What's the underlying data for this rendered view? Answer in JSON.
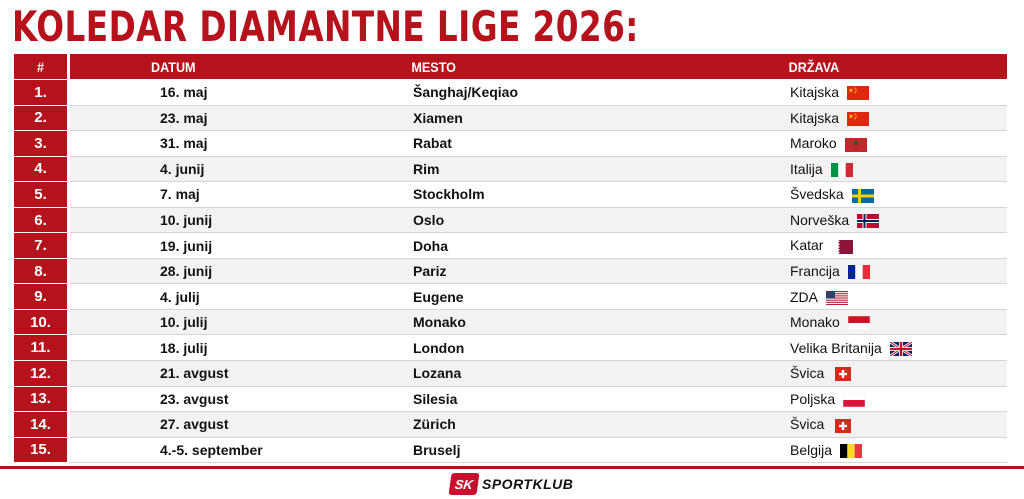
{
  "title": "KOLEDAR DIAMANTNE LIGE 2026:",
  "headers": {
    "num": "#",
    "date": "DATUM",
    "place": "MESTO",
    "country": "DRŽAVA"
  },
  "rows": [
    {
      "num": "1.",
      "date": "16. maj",
      "place": "Šanghaj/Keqiao",
      "country": "Kitajska",
      "flag": "china-flag-icon"
    },
    {
      "num": "2.",
      "date": "23. maj",
      "place": "Xiamen",
      "country": "Kitajska",
      "flag": "china-flag-icon"
    },
    {
      "num": "3.",
      "date": "31. maj",
      "place": "Rabat",
      "country": "Maroko",
      "flag": "morocco-flag-icon"
    },
    {
      "num": "4.",
      "date": "4. junij",
      "place": "Rim",
      "country": "Italija",
      "flag": "italy-flag-icon"
    },
    {
      "num": "5.",
      "date": "7. maj",
      "place": "Stockholm",
      "country": "Švedska",
      "flag": "sweden-flag-icon"
    },
    {
      "num": "6.",
      "date": "10. junij",
      "place": "Oslo",
      "country": "Norveška",
      "flag": "norway-flag-icon"
    },
    {
      "num": "7.",
      "date": "19. junij",
      "place": "Doha",
      "country": "Katar",
      "flag": "qatar-flag-icon"
    },
    {
      "num": "8.",
      "date": "28. junij",
      "place": "Pariz",
      "country": "Francija",
      "flag": "france-flag-icon"
    },
    {
      "num": "9.",
      "date": "4. julij",
      "place": "Eugene",
      "country": "ZDA",
      "flag": "usa-flag-icon"
    },
    {
      "num": "10.",
      "date": "10. julij",
      "place": "Monako",
      "country": "Monako",
      "flag": "monaco-flag-icon"
    },
    {
      "num": "11.",
      "date": "18. julij",
      "place": "London",
      "country": "Velika Britanija",
      "flag": "uk-flag-icon"
    },
    {
      "num": "12.",
      "date": "21. avgust",
      "place": "Lozana",
      "country": "Švica",
      "flag": "switzerland-flag-icon"
    },
    {
      "num": "13.",
      "date": "23. avgust",
      "place": "Silesia",
      "country": "Poljska",
      "flag": "poland-flag-icon"
    },
    {
      "num": "14.",
      "date": "27. avgust",
      "place": "Zürich",
      "country": "Švica",
      "flag": "switzerland-flag-icon"
    },
    {
      "num": "15.",
      "date": "4.-5. september",
      "place": "Bruselj",
      "country": "Belgija",
      "flag": "belgium-flag-icon"
    }
  ],
  "logo": {
    "badge": "SK",
    "text": "SPORTKLUB"
  },
  "colors": {
    "accent": "#b5121b",
    "row_alt": "#f2f2f2"
  }
}
